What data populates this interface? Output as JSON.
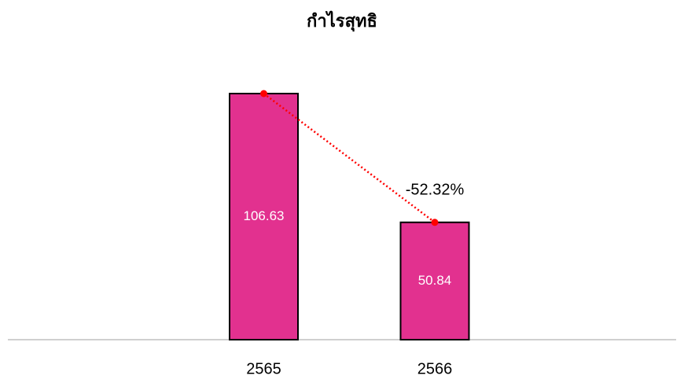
{
  "chart_data": {
    "type": "bar",
    "title": "กำไรสุทธิ",
    "categories": [
      "2565",
      "2566"
    ],
    "values": [
      106.63,
      50.84
    ],
    "color": "#e2318f",
    "line_color": "#ff0000",
    "annotation": "-52.32%"
  }
}
